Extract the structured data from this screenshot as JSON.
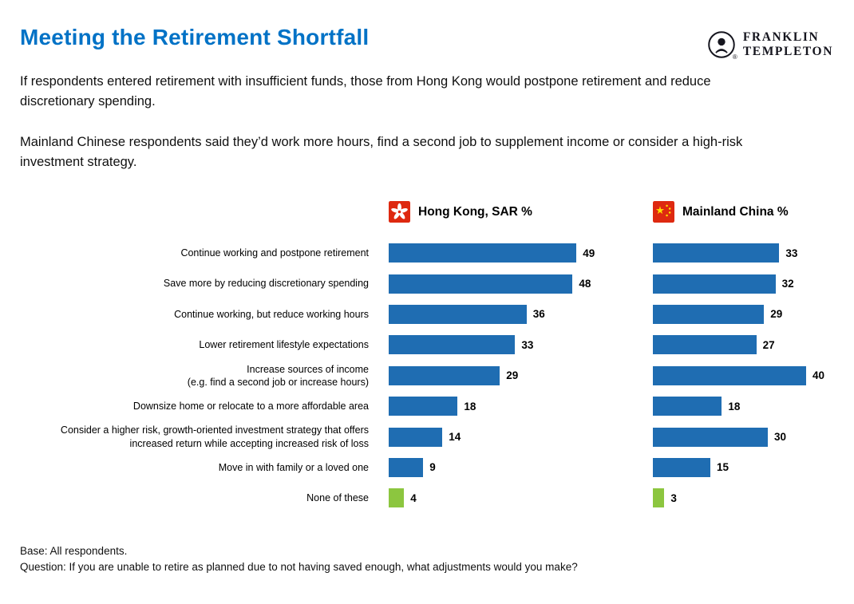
{
  "page": {
    "title": "Meeting the Retirement Shortfall",
    "logo": {
      "brand_line1": "FRANKLIN",
      "brand_line2": "TEMPLETON",
      "registered_mark": "®",
      "mark_icon": "franklin-head-icon"
    },
    "intro_paragraph_1": "If respondents entered retirement with insufficient funds, those from Hong Kong would postpone retirement and reduce discretionary spending.",
    "intro_paragraph_2": "Mainland Chinese respondents said they’d work more hours, find a second job to supplement income or consider a high-risk investment strategy.",
    "footer_line1": "Base: All respondents.",
    "footer_line2": "Question: If you are unable to retire as planned due to not having saved enough, what adjustments would you make?"
  },
  "chart_data": {
    "type": "bar",
    "orientation": "horizontal",
    "title": "",
    "xlabel": "",
    "ylabel": "",
    "xlim": [
      0,
      52
    ],
    "grid": false,
    "value_labels": true,
    "categories": [
      "Continue working and postpone retirement",
      "Save more by reducing discretionary spending",
      "Continue working, but reduce working hours",
      "Lower retirement lifestyle expectations",
      "Increase sources of income\n(e.g. find a second job or increase hours)",
      "Downsize home or relocate to a more affordable area",
      "Consider a higher risk, growth-oriented investment strategy that offers\nincreased return while accepting increased risk of loss",
      "Move in with family or a loved one",
      "None of these"
    ],
    "series": [
      {
        "name": "Hong Kong, SAR %",
        "flag_icon": "hong-kong-flag-icon",
        "values": [
          49,
          48,
          36,
          33,
          29,
          18,
          14,
          9,
          4
        ]
      },
      {
        "name": "Mainland China %",
        "flag_icon": "china-flag-icon",
        "values": [
          33,
          32,
          29,
          27,
          40,
          18,
          30,
          15,
          3
        ]
      }
    ],
    "highlight_category": "None of these",
    "bar_color": "#1F6DB2",
    "highlight_color": "#8CC63F"
  },
  "colors": {
    "title_blue": "#0072C6",
    "bar_blue": "#1F6DB2",
    "bar_green": "#8CC63F",
    "flag_red": "#DE2910",
    "star_yellow": "#FFDE00"
  }
}
